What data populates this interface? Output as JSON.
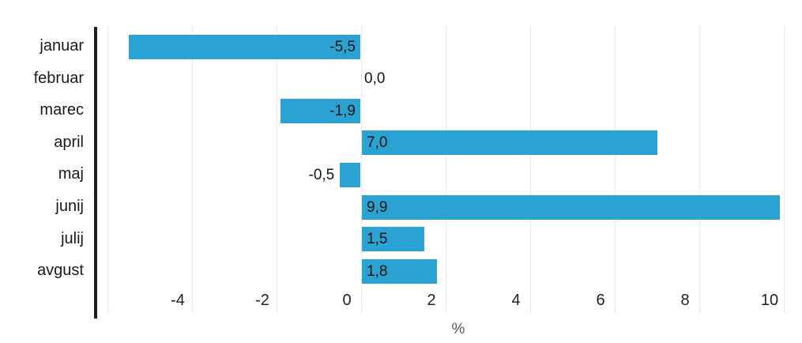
{
  "chart_data": {
    "type": "bar",
    "orientation": "horizontal",
    "title": "",
    "xlabel": "%",
    "ylabel": "",
    "categories": [
      "januar",
      "februar",
      "marec",
      "april",
      "maj",
      "junij",
      "julij",
      "avgust"
    ],
    "values": [
      -5.5,
      0.0,
      -1.9,
      7.0,
      -0.5,
      9.9,
      1.5,
      1.8
    ],
    "value_labels": [
      "-5,5",
      "0,0",
      "-1,9",
      "7,0",
      "-0,5",
      "9,9",
      "1,5",
      "1,8"
    ],
    "xlim": [
      -6.3,
      10.25
    ],
    "x_ticks": [
      -4,
      -2,
      0,
      2,
      4,
      6,
      8,
      10
    ],
    "x_tick_labels": [
      "-4",
      "-2",
      "0",
      "2",
      "4",
      "6",
      "8",
      "10"
    ],
    "gridline_ticks": [
      -6,
      -4,
      -2,
      0,
      2,
      4,
      6,
      8,
      10
    ],
    "grid": true,
    "legend": false,
    "decimal_separator": ",",
    "colors": {
      "bar": "#2aa3d3",
      "grid": "#e7e7e7",
      "axis_line": "#1f1f1f",
      "label_text": "#1a1a1a",
      "unit_text": "#595959",
      "background": "#ffffff"
    }
  }
}
